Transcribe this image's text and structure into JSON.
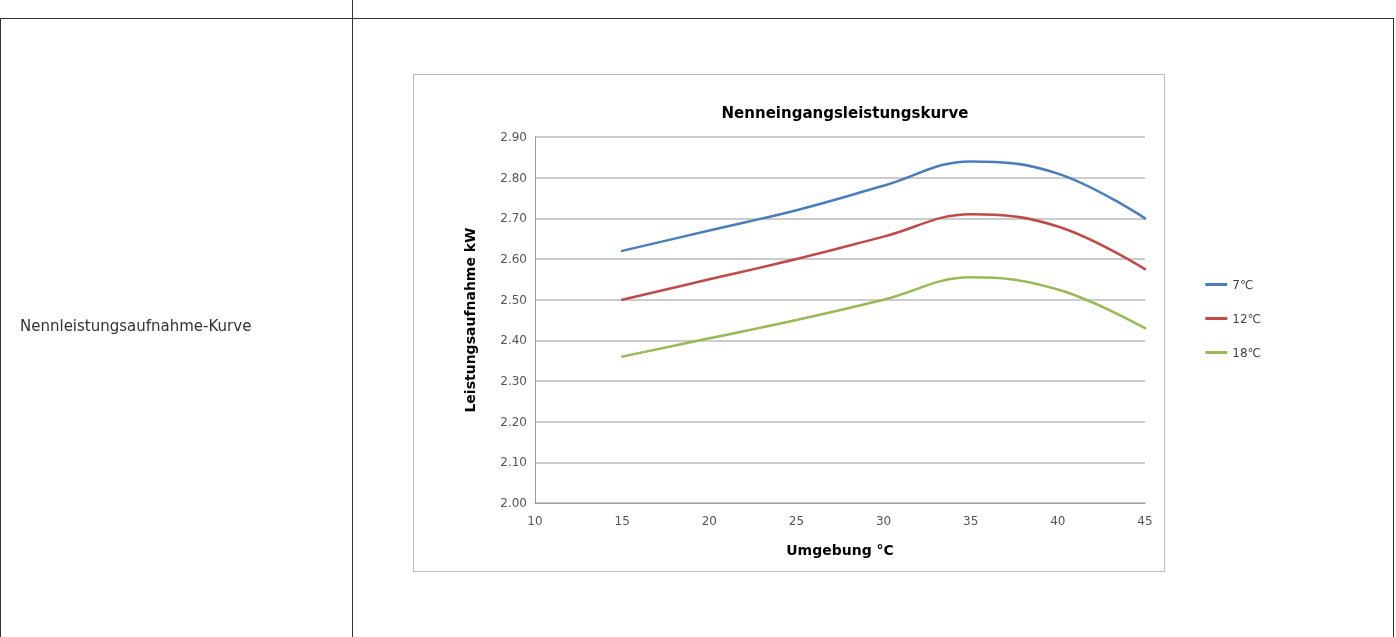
{
  "chart_data": {
    "type": "line",
    "title": "Nenneingangsleistungskurve",
    "xlabel": "Umgebung °C",
    "ylabel": "Leistungsaufnahme kW",
    "annotations": [
      "Nennleistungsaufnahme-Kurve"
    ],
    "x": [
      15,
      20,
      25,
      30,
      35,
      40,
      45
    ],
    "series": [
      {
        "name": "7℃",
        "color": "#4a7ebb",
        "values": [
          2.62,
          2.67,
          2.72,
          2.78,
          2.84,
          2.81,
          2.7
        ]
      },
      {
        "name": "12℃",
        "color": "#be4b48",
        "values": [
          2.5,
          2.55,
          2.6,
          2.655,
          2.71,
          2.68,
          2.575
        ]
      },
      {
        "name": "18℃",
        "color": "#98b954",
        "values": [
          2.36,
          2.405,
          2.45,
          2.5,
          2.555,
          2.525,
          2.43
        ]
      }
    ],
    "xlim": [
      10,
      45
    ],
    "xticks": [
      10,
      15,
      20,
      25,
      30,
      35,
      40,
      45
    ],
    "ylim": [
      2.0,
      2.9
    ],
    "yticks": [
      {
        "value": 2.0,
        "label": "2.00"
      },
      {
        "value": 2.1,
        "label": "2.10"
      },
      {
        "value": 2.2,
        "label": "2.20"
      },
      {
        "value": 2.3,
        "label": "2.30"
      },
      {
        "value": 2.4,
        "label": "2.40"
      },
      {
        "value": 2.5,
        "label": "2.50"
      },
      {
        "value": 2.6,
        "label": "2.60"
      },
      {
        "value": 2.7,
        "label": "2.70"
      },
      {
        "value": 2.8,
        "label": "2.80"
      },
      {
        "value": 2.9,
        "label": "2.90"
      }
    ],
    "grid": "y",
    "legend": "right",
    "marker": "none",
    "line_style": "solid"
  }
}
